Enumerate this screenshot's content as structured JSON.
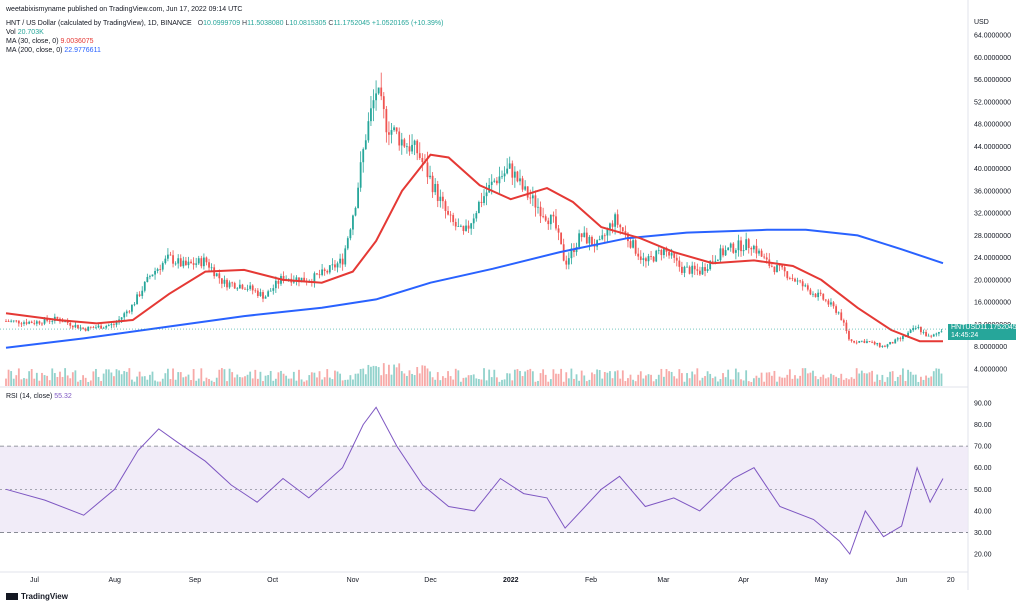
{
  "header": {
    "author_line": "weetabixismyname published on TradingView.com, Jun 17, 2022 09:14 UTC",
    "symbol": "HNT / US Dollar (calculated by TradingView), 1D, BINANCE",
    "ohlc": {
      "o_label": "O",
      "o": "10.0999709",
      "h_label": "H",
      "h": "11.5038080",
      "l_label": "L",
      "l": "10.0815305",
      "c_label": "C",
      "c": "11.1752045",
      "change": "+1.0520165 (+10.39%)"
    },
    "vol_label": "Vol",
    "vol_value": "20.703K",
    "ma30_label": "MA (30, close, 0)",
    "ma30_value": "9.0036075",
    "ma200_label": "MA (200, close, 0)",
    "ma200_value": "22.9776611",
    "rsi_label": "RSI (14, close)",
    "rsi_value": "55.32"
  },
  "colors": {
    "up": "#26a69a",
    "down": "#ef5350",
    "ma30": "#e53935",
    "ma200": "#2962ff",
    "rsi_line": "#7e57c2",
    "rsi_band": "#ede7f6"
  },
  "price_badge": {
    "symbol": "HNTUSD",
    "price": "11.1752045",
    "countdown": "14:45:24"
  },
  "footer": {
    "logo_text": "TradingView"
  },
  "chart_data": [
    {
      "type": "candlestick",
      "title": "HNT / US Dollar (calculated by TradingView), 1D, BINANCE",
      "y_unit": "USD",
      "y_ticks": [
        "64.0000000",
        "60.0000000",
        "56.0000000",
        "52.0000000",
        "48.0000000",
        "44.0000000",
        "40.0000000",
        "36.0000000",
        "32.0000000",
        "28.0000000",
        "24.0000000",
        "20.0000000",
        "16.0000000",
        "12.0000000",
        "8.0000000",
        "4.0000000"
      ],
      "x_ticks": [
        "Jul",
        "Aug",
        "Sep",
        "Oct",
        "Nov",
        "Dec",
        "2022",
        "Feb",
        "Mar",
        "Apr",
        "May",
        "Jun",
        "20"
      ],
      "ylim": [
        0,
        66
      ],
      "close_series": [
        {
          "x": "2021-06-20",
          "y": 12.6
        },
        {
          "x": "2021-07-01",
          "y": 12.4
        },
        {
          "x": "2021-07-10",
          "y": 13.0
        },
        {
          "x": "2021-07-20",
          "y": 11.2
        },
        {
          "x": "2021-08-01",
          "y": 12.0
        },
        {
          "x": "2021-08-08",
          "y": 15.5
        },
        {
          "x": "2021-08-15",
          "y": 21.0
        },
        {
          "x": "2021-08-22",
          "y": 24.0
        },
        {
          "x": "2021-08-28",
          "y": 22.5
        },
        {
          "x": "2021-09-05",
          "y": 23.5
        },
        {
          "x": "2021-09-12",
          "y": 19.5
        },
        {
          "x": "2021-09-20",
          "y": 19.0
        },
        {
          "x": "2021-09-28",
          "y": 17.0
        },
        {
          "x": "2021-10-05",
          "y": 20.5
        },
        {
          "x": "2021-10-15",
          "y": 20.0
        },
        {
          "x": "2021-10-22",
          "y": 21.5
        },
        {
          "x": "2021-10-28",
          "y": 23.5
        },
        {
          "x": "2021-11-02",
          "y": 34.0
        },
        {
          "x": "2021-11-06",
          "y": 46.0
        },
        {
          "x": "2021-11-10",
          "y": 54.0
        },
        {
          "x": "2021-11-14",
          "y": 48.0
        },
        {
          "x": "2021-11-20",
          "y": 45.0
        },
        {
          "x": "2021-11-26",
          "y": 43.0
        },
        {
          "x": "2021-12-02",
          "y": 37.0
        },
        {
          "x": "2021-12-08",
          "y": 31.0
        },
        {
          "x": "2021-12-14",
          "y": 28.0
        },
        {
          "x": "2021-12-20",
          "y": 34.0
        },
        {
          "x": "2021-12-26",
          "y": 38.0
        },
        {
          "x": "2022-01-01",
          "y": 40.0
        },
        {
          "x": "2022-01-06",
          "y": 36.0
        },
        {
          "x": "2022-01-12",
          "y": 33.0
        },
        {
          "x": "2022-01-18",
          "y": 30.0
        },
        {
          "x": "2022-01-22",
          "y": 23.0
        },
        {
          "x": "2022-01-28",
          "y": 28.0
        },
        {
          "x": "2022-02-04",
          "y": 26.0
        },
        {
          "x": "2022-02-10",
          "y": 31.0
        },
        {
          "x": "2022-02-16",
          "y": 27.0
        },
        {
          "x": "2022-02-22",
          "y": 23.0
        },
        {
          "x": "2022-03-01",
          "y": 25.5
        },
        {
          "x": "2022-03-08",
          "y": 22.0
        },
        {
          "x": "2022-03-15",
          "y": 21.5
        },
        {
          "x": "2022-03-22",
          "y": 24.5
        },
        {
          "x": "2022-03-29",
          "y": 26.0
        },
        {
          "x": "2022-04-04",
          "y": 26.5
        },
        {
          "x": "2022-04-10",
          "y": 23.0
        },
        {
          "x": "2022-04-18",
          "y": 21.0
        },
        {
          "x": "2022-04-25",
          "y": 18.5
        },
        {
          "x": "2022-05-02",
          "y": 16.5
        },
        {
          "x": "2022-05-08",
          "y": 14.0
        },
        {
          "x": "2022-05-12",
          "y": 9.0
        },
        {
          "x": "2022-05-18",
          "y": 9.0
        },
        {
          "x": "2022-05-25",
          "y": 8.0
        },
        {
          "x": "2022-06-01",
          "y": 9.5
        },
        {
          "x": "2022-06-07",
          "y": 11.5
        },
        {
          "x": "2022-06-12",
          "y": 9.5
        },
        {
          "x": "2022-06-15",
          "y": 10.5
        },
        {
          "x": "2022-06-17",
          "y": 11.2
        }
      ],
      "ma30": [
        {
          "x": "2021-06-20",
          "y": 14.0
        },
        {
          "x": "2021-07-10",
          "y": 12.8
        },
        {
          "x": "2021-07-25",
          "y": 12.2
        },
        {
          "x": "2021-08-08",
          "y": 12.8
        },
        {
          "x": "2021-08-22",
          "y": 17.5
        },
        {
          "x": "2021-09-05",
          "y": 21.5
        },
        {
          "x": "2021-09-20",
          "y": 21.8
        },
        {
          "x": "2021-10-05",
          "y": 20.0
        },
        {
          "x": "2021-10-20",
          "y": 19.5
        },
        {
          "x": "2021-11-01",
          "y": 21.5
        },
        {
          "x": "2021-11-10",
          "y": 27.0
        },
        {
          "x": "2021-11-20",
          "y": 36.0
        },
        {
          "x": "2021-12-01",
          "y": 42.5
        },
        {
          "x": "2021-12-08",
          "y": 42.0
        },
        {
          "x": "2021-12-20",
          "y": 37.0
        },
        {
          "x": "2022-01-01",
          "y": 34.5
        },
        {
          "x": "2022-01-15",
          "y": 36.5
        },
        {
          "x": "2022-01-25",
          "y": 34.0
        },
        {
          "x": "2022-02-05",
          "y": 29.5
        },
        {
          "x": "2022-02-20",
          "y": 27.5
        },
        {
          "x": "2022-03-05",
          "y": 25.0
        },
        {
          "x": "2022-03-20",
          "y": 23.0
        },
        {
          "x": "2022-04-05",
          "y": 23.5
        },
        {
          "x": "2022-04-20",
          "y": 22.5
        },
        {
          "x": "2022-05-01",
          "y": 20.0
        },
        {
          "x": "2022-05-15",
          "y": 15.0
        },
        {
          "x": "2022-05-28",
          "y": 11.0
        },
        {
          "x": "2022-06-08",
          "y": 9.0
        },
        {
          "x": "2022-06-17",
          "y": 9.0
        }
      ],
      "ma200": [
        {
          "x": "2021-06-20",
          "y": 7.8
        },
        {
          "x": "2021-07-20",
          "y": 9.5
        },
        {
          "x": "2021-08-20",
          "y": 11.5
        },
        {
          "x": "2021-09-20",
          "y": 13.5
        },
        {
          "x": "2021-10-20",
          "y": 15.0
        },
        {
          "x": "2021-11-10",
          "y": 16.5
        },
        {
          "x": "2021-12-01",
          "y": 19.5
        },
        {
          "x": "2021-12-25",
          "y": 22.0
        },
        {
          "x": "2022-01-20",
          "y": 25.0
        },
        {
          "x": "2022-02-15",
          "y": 27.5
        },
        {
          "x": "2022-03-10",
          "y": 28.5
        },
        {
          "x": "2022-04-10",
          "y": 29.0
        },
        {
          "x": "2022-04-25",
          "y": 29.0
        },
        {
          "x": "2022-05-15",
          "y": 28.0
        },
        {
          "x": "2022-06-01",
          "y": 25.5
        },
        {
          "x": "2022-06-17",
          "y": 23.0
        }
      ]
    },
    {
      "type": "line",
      "title": "RSI (14, close)",
      "y_ticks": [
        "90.00",
        "80.00",
        "70.00",
        "60.00",
        "50.00",
        "40.00",
        "30.00",
        "20.00"
      ],
      "ylim": [
        15,
        95
      ],
      "band": [
        30,
        70
      ],
      "series": [
        {
          "x": "2021-06-20",
          "y": 50
        },
        {
          "x": "2021-07-05",
          "y": 45
        },
        {
          "x": "2021-07-20",
          "y": 38
        },
        {
          "x": "2021-08-01",
          "y": 50
        },
        {
          "x": "2021-08-10",
          "y": 68
        },
        {
          "x": "2021-08-18",
          "y": 78
        },
        {
          "x": "2021-08-25",
          "y": 72
        },
        {
          "x": "2021-09-05",
          "y": 63
        },
        {
          "x": "2021-09-15",
          "y": 52
        },
        {
          "x": "2021-09-25",
          "y": 44
        },
        {
          "x": "2021-10-05",
          "y": 55
        },
        {
          "x": "2021-10-15",
          "y": 46
        },
        {
          "x": "2021-10-28",
          "y": 60
        },
        {
          "x": "2021-11-05",
          "y": 80
        },
        {
          "x": "2021-11-10",
          "y": 88
        },
        {
          "x": "2021-11-18",
          "y": 70
        },
        {
          "x": "2021-11-28",
          "y": 52
        },
        {
          "x": "2021-12-08",
          "y": 42
        },
        {
          "x": "2021-12-18",
          "y": 40
        },
        {
          "x": "2021-12-28",
          "y": 55
        },
        {
          "x": "2022-01-06",
          "y": 48
        },
        {
          "x": "2022-01-15",
          "y": 46
        },
        {
          "x": "2022-01-22",
          "y": 32
        },
        {
          "x": "2022-02-05",
          "y": 50
        },
        {
          "x": "2022-02-12",
          "y": 56
        },
        {
          "x": "2022-02-22",
          "y": 42
        },
        {
          "x": "2022-03-05",
          "y": 46
        },
        {
          "x": "2022-03-15",
          "y": 40
        },
        {
          "x": "2022-03-28",
          "y": 55
        },
        {
          "x": "2022-04-05",
          "y": 60
        },
        {
          "x": "2022-04-15",
          "y": 42
        },
        {
          "x": "2022-04-28",
          "y": 36
        },
        {
          "x": "2022-05-08",
          "y": 26
        },
        {
          "x": "2022-05-12",
          "y": 20
        },
        {
          "x": "2022-05-18",
          "y": 40
        },
        {
          "x": "2022-05-25",
          "y": 28
        },
        {
          "x": "2022-06-01",
          "y": 33
        },
        {
          "x": "2022-06-07",
          "y": 60
        },
        {
          "x": "2022-06-12",
          "y": 44
        },
        {
          "x": "2022-06-17",
          "y": 55
        }
      ]
    }
  ]
}
